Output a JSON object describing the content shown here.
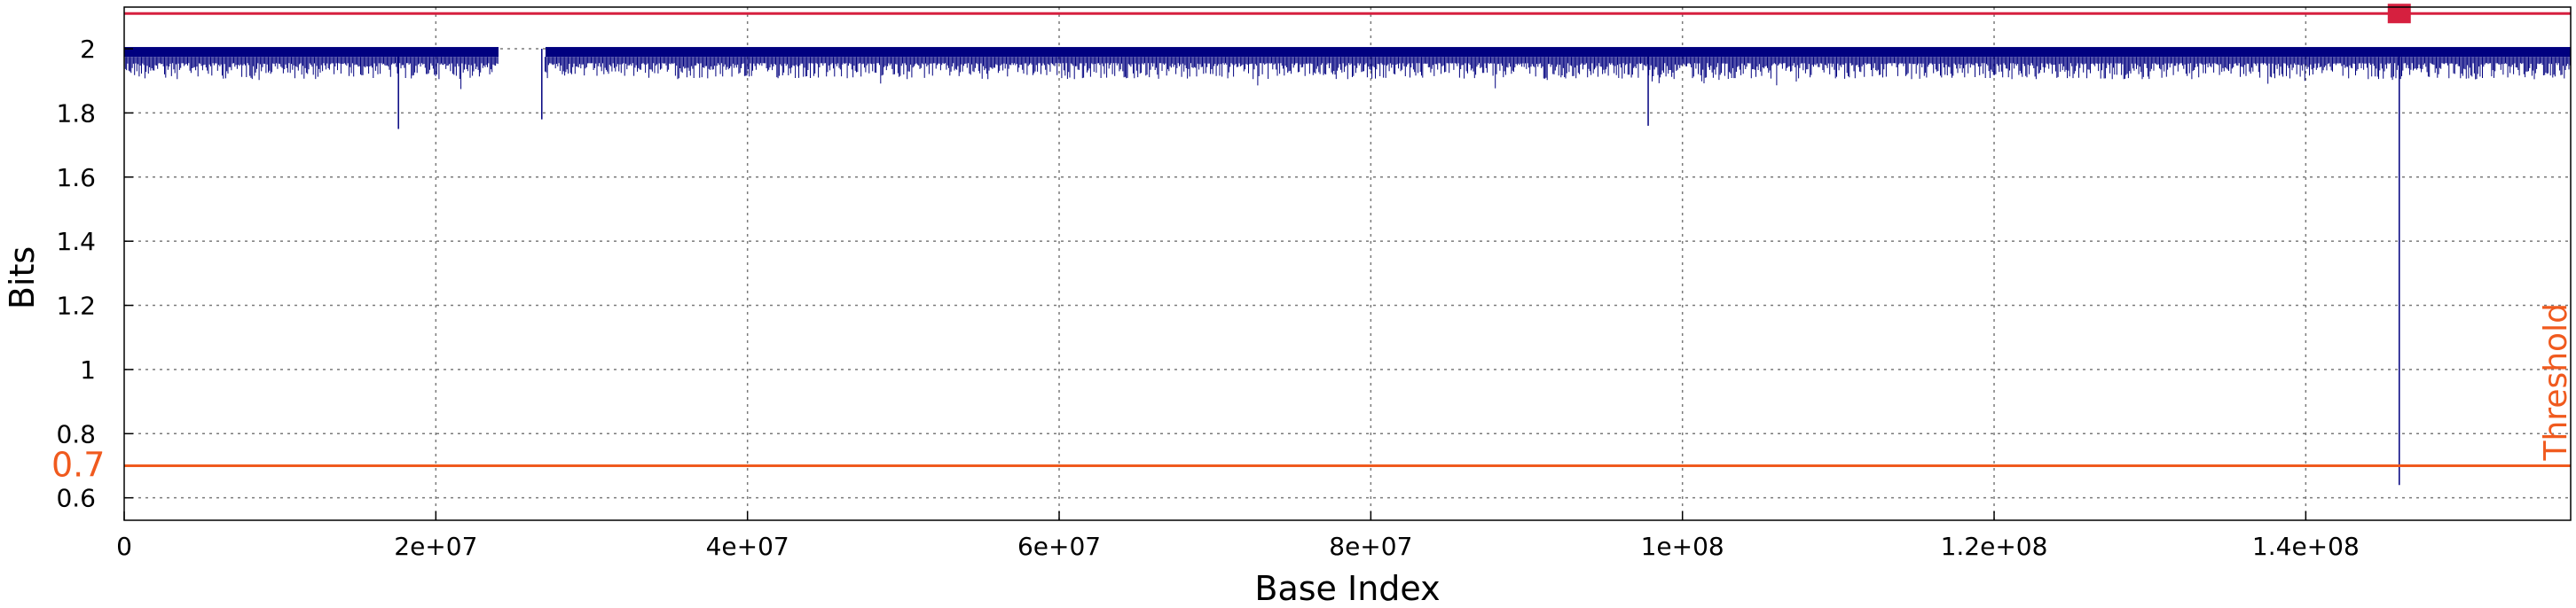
{
  "chart_data": {
    "type": "line",
    "title": "",
    "xlabel": "Base Index",
    "ylabel": "Bits",
    "xlim": [
      0,
      157000000
    ],
    "ylim": [
      0.53,
      2.13
    ],
    "x_ticks": [
      {
        "value": 0,
        "label": "0"
      },
      {
        "value": 20000000,
        "label": "2e+07"
      },
      {
        "value": 40000000,
        "label": "4e+07"
      },
      {
        "value": 60000000,
        "label": "6e+07"
      },
      {
        "value": 80000000,
        "label": "8e+07"
      },
      {
        "value": 100000000,
        "label": "1e+08"
      },
      {
        "value": 120000000,
        "label": "1.2e+08"
      },
      {
        "value": 140000000,
        "label": "1.4e+08"
      }
    ],
    "y_ticks": [
      {
        "value": 0.6,
        "label": "0.6"
      },
      {
        "value": 0.8,
        "label": "0.8"
      },
      {
        "value": 1.0,
        "label": "1"
      },
      {
        "value": 1.2,
        "label": "1.2"
      },
      {
        "value": 1.4,
        "label": "1.4"
      },
      {
        "value": 1.6,
        "label": "1.6"
      },
      {
        "value": 1.8,
        "label": "1.8"
      },
      {
        "value": 2.0,
        "label": "2"
      }
    ],
    "grid": true,
    "series": [
      {
        "color": "#00007f",
        "baseline": 2.0,
        "typical_min": 1.9,
        "x_range": [
          0,
          157000000
        ],
        "gaps": [
          [
            24000000,
            27000000
          ]
        ],
        "deep_dips": [
          {
            "x": 17600000,
            "y": 1.75
          },
          {
            "x": 26800000,
            "y": 1.78
          },
          {
            "x": 97800000,
            "y": 1.76
          },
          {
            "x": 146000000,
            "y": 0.64
          }
        ]
      }
    ],
    "reference_lines": [
      {
        "y": 0.7,
        "color": "#f05a1e",
        "label": "Threshold",
        "value_label": "0.7"
      },
      {
        "y": 2.11,
        "color": "#d6203f"
      }
    ],
    "markers": [
      {
        "x": 146000000,
        "y": 2.11,
        "color": "#d6203f",
        "shape": "square"
      }
    ]
  }
}
